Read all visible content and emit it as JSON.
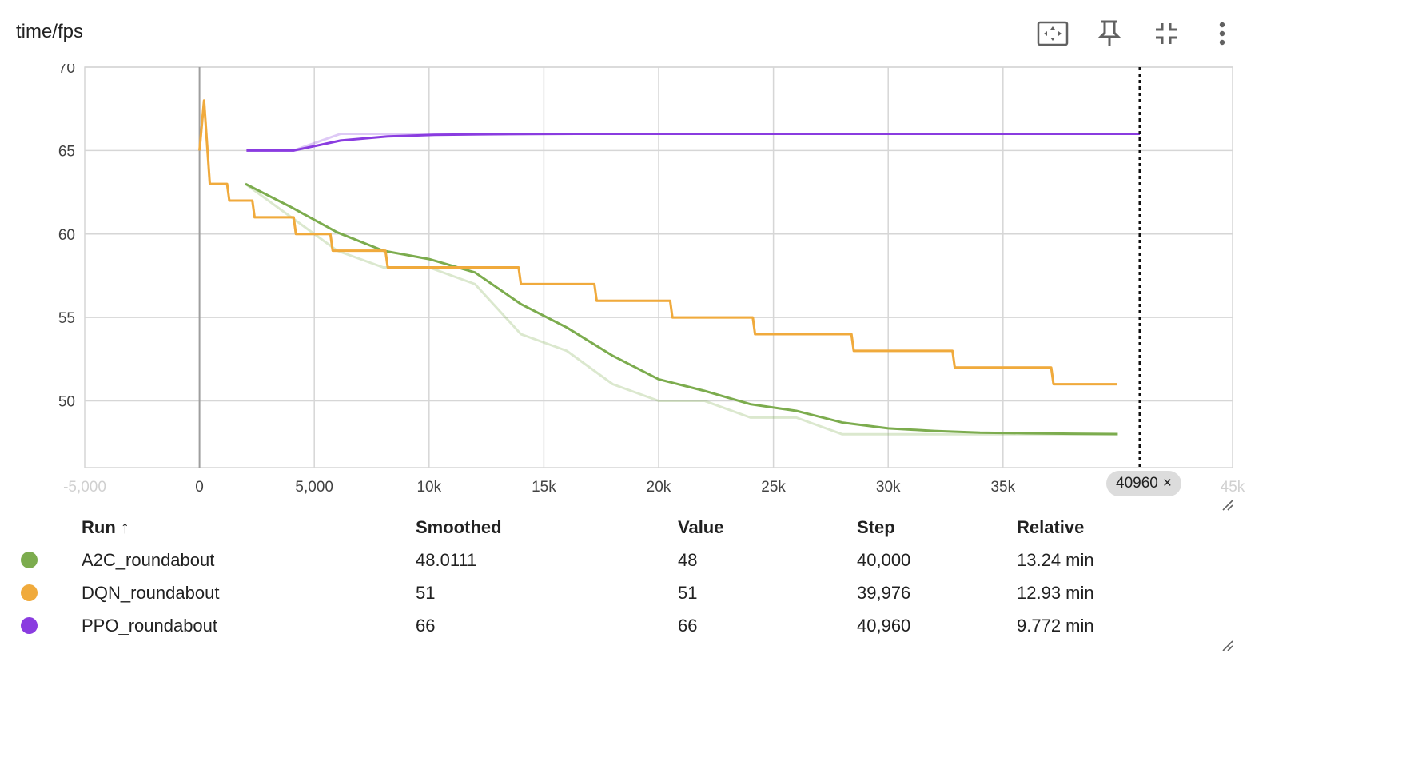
{
  "card": {
    "title": "time/fps"
  },
  "toolbar": [
    {
      "name": "fit-domain-icon"
    },
    {
      "name": "pin-icon"
    },
    {
      "name": "collapse-icon"
    },
    {
      "name": "more-vert-icon"
    }
  ],
  "colors": {
    "A2C_roundabout": "#7cac4e",
    "DQN_roundabout": "#f0aa3c",
    "PPO_roundabout": "#8a3ce0",
    "grid": "#d6d6d6",
    "axis": "#9e9e9e"
  },
  "chart_data": {
    "type": "line",
    "title": "time/fps",
    "xlim": [
      -5000,
      45000
    ],
    "ylim": [
      46,
      70
    ],
    "y_ticks": [
      50,
      55,
      60,
      65,
      70
    ],
    "x_ticks": [
      0,
      5000,
      10000,
      15000,
      20000,
      25000,
      30000,
      35000
    ],
    "y_tick_labels": [
      "50",
      "55",
      "60",
      "65",
      "70"
    ],
    "x_tick_labels": [
      "0",
      "5,000",
      "10k",
      "15k",
      "20k",
      "25k",
      "30k",
      "35k"
    ],
    "x_edge_labels": [
      "-5,000",
      "45k"
    ],
    "grid": true,
    "cursor_step": 40960,
    "cursor_label": "40960",
    "series": [
      {
        "name": "A2C_roundabout",
        "smoothed": [
          [
            2000,
            63
          ],
          [
            4000,
            61.6
          ],
          [
            6000,
            60.1
          ],
          [
            8000,
            59
          ],
          [
            10000,
            58.5
          ],
          [
            12000,
            57.7
          ],
          [
            14000,
            55.8
          ],
          [
            16000,
            54.4
          ],
          [
            18000,
            52.7
          ],
          [
            20000,
            51.3
          ],
          [
            22000,
            50.6
          ],
          [
            24000,
            49.8
          ],
          [
            26000,
            49.4
          ],
          [
            28000,
            48.7
          ],
          [
            30000,
            48.35
          ],
          [
            32000,
            48.2
          ],
          [
            34000,
            48.1
          ],
          [
            36000,
            48.06
          ],
          [
            38000,
            48.03
          ],
          [
            40000,
            48.01
          ]
        ],
        "raw": [
          [
            2000,
            63
          ],
          [
            4000,
            61
          ],
          [
            6000,
            59
          ],
          [
            8000,
            58
          ],
          [
            10000,
            58
          ],
          [
            12000,
            57
          ],
          [
            14000,
            54
          ],
          [
            16000,
            53
          ],
          [
            18000,
            51
          ],
          [
            20000,
            50
          ],
          [
            22000,
            50
          ],
          [
            24000,
            49
          ],
          [
            26000,
            49
          ],
          [
            28000,
            48
          ],
          [
            30000,
            48
          ],
          [
            32000,
            48
          ],
          [
            34000,
            48
          ],
          [
            36000,
            48
          ],
          [
            38000,
            48
          ],
          [
            40000,
            48
          ]
        ]
      },
      {
        "name": "DQN_roundabout",
        "smoothed": [
          [
            0,
            65
          ],
          [
            200,
            68
          ],
          [
            450,
            63
          ],
          [
            1200,
            63
          ],
          [
            1300,
            62
          ],
          [
            2300,
            62
          ],
          [
            2400,
            61
          ],
          [
            4100,
            61
          ],
          [
            4200,
            60
          ],
          [
            5700,
            60
          ],
          [
            5800,
            59
          ],
          [
            8100,
            59
          ],
          [
            8200,
            58
          ],
          [
            13900,
            58
          ],
          [
            14000,
            57
          ],
          [
            17200,
            57
          ],
          [
            17300,
            56
          ],
          [
            20500,
            56
          ],
          [
            20600,
            55
          ],
          [
            24100,
            55
          ],
          [
            24200,
            54
          ],
          [
            28400,
            54
          ],
          [
            28500,
            53
          ],
          [
            32800,
            53
          ],
          [
            32900,
            52
          ],
          [
            37100,
            52
          ],
          [
            37200,
            51
          ],
          [
            39976,
            51
          ]
        ],
        "raw": [
          [
            0,
            65
          ],
          [
            200,
            68
          ],
          [
            450,
            63
          ],
          [
            1200,
            63
          ],
          [
            1300,
            62
          ],
          [
            2300,
            62
          ],
          [
            2400,
            61
          ],
          [
            4100,
            61
          ],
          [
            4200,
            60
          ],
          [
            5700,
            60
          ],
          [
            5800,
            59
          ],
          [
            8100,
            59
          ],
          [
            8200,
            58
          ],
          [
            13900,
            58
          ],
          [
            14000,
            57
          ],
          [
            17200,
            57
          ],
          [
            17300,
            56
          ],
          [
            20500,
            56
          ],
          [
            20600,
            55
          ],
          [
            24100,
            55
          ],
          [
            24200,
            54
          ],
          [
            28400,
            54
          ],
          [
            28500,
            53
          ],
          [
            32800,
            53
          ],
          [
            32900,
            52
          ],
          [
            37100,
            52
          ],
          [
            37200,
            51
          ],
          [
            39976,
            51
          ]
        ]
      },
      {
        "name": "PPO_roundabout",
        "smoothed": [
          [
            2048,
            65
          ],
          [
            4096,
            65
          ],
          [
            6144,
            65.6
          ],
          [
            8192,
            65.84
          ],
          [
            10240,
            65.94
          ],
          [
            12288,
            65.97
          ],
          [
            14336,
            65.99
          ],
          [
            16384,
            66
          ],
          [
            18432,
            66
          ],
          [
            20480,
            66
          ],
          [
            24576,
            66
          ],
          [
            28672,
            66
          ],
          [
            32768,
            66
          ],
          [
            36864,
            66
          ],
          [
            40960,
            66
          ]
        ],
        "raw": [
          [
            2048,
            65
          ],
          [
            4096,
            65
          ],
          [
            6144,
            66
          ],
          [
            8192,
            66
          ],
          [
            10240,
            66
          ],
          [
            14336,
            66
          ],
          [
            18432,
            66
          ],
          [
            24576,
            66
          ],
          [
            32768,
            66
          ],
          [
            40960,
            66
          ]
        ]
      }
    ]
  },
  "table": {
    "headers": {
      "run": "Run ↑",
      "smoothed": "Smoothed",
      "value": "Value",
      "step": "Step",
      "relative": "Relative"
    },
    "rows": [
      {
        "run": "A2C_roundabout",
        "smoothed": "48.0111",
        "value": "48",
        "step": "40,000",
        "relative": "13.24 min"
      },
      {
        "run": "DQN_roundabout",
        "smoothed": "51",
        "value": "51",
        "step": "39,976",
        "relative": "12.93 min"
      },
      {
        "run": "PPO_roundabout",
        "smoothed": "66",
        "value": "66",
        "step": "40,960",
        "relative": "9.772 min"
      }
    ]
  }
}
